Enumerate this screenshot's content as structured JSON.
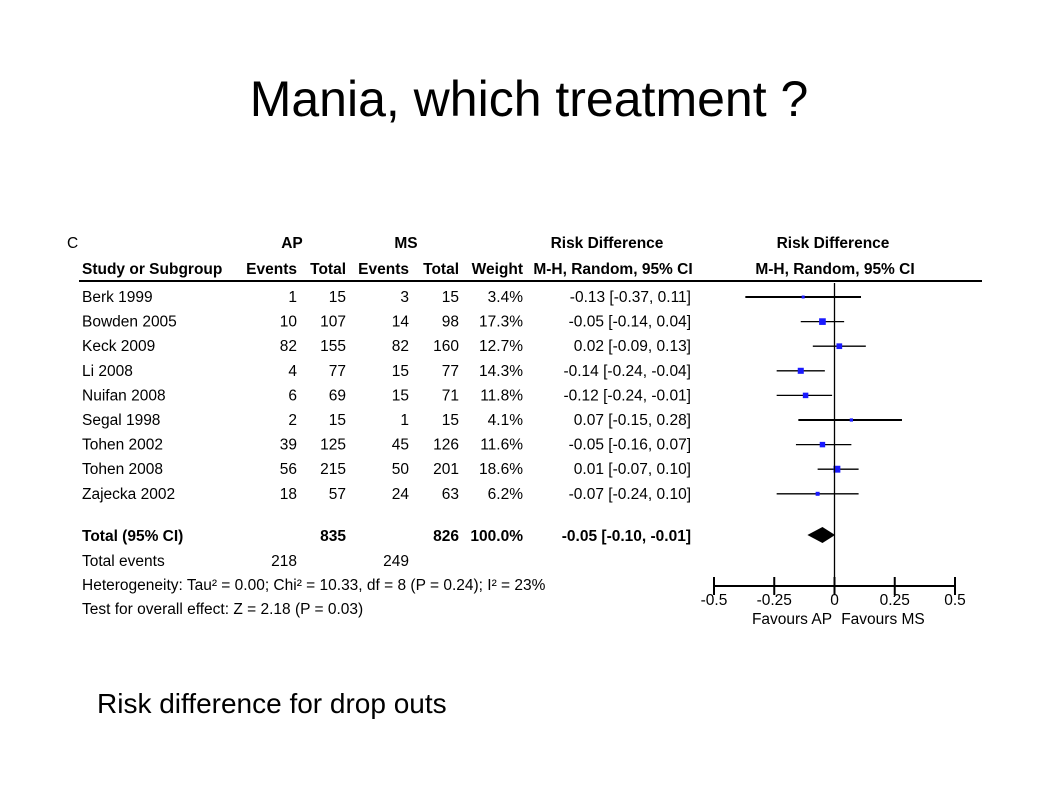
{
  "slide": {
    "title": "Mania, which treatment ?",
    "caption": "Risk difference for drop outs"
  },
  "chart_data": {
    "type": "forest",
    "panel_label": "C",
    "group_headers": {
      "ap": "AP",
      "ms": "MS"
    },
    "column_headers": {
      "study": "Study or Subgroup",
      "ap_events": "Events",
      "ap_total": "Total",
      "ms_events": "Events",
      "ms_total": "Total",
      "weight": "Weight",
      "rd_title": "Risk Difference",
      "rd_method": "M-H, Random, 95% CI",
      "plot_title": "Risk Difference",
      "plot_method": "M-H, Random, 95% CI"
    },
    "studies": [
      {
        "name": "Berk 1999",
        "ap_events": "1",
        "ap_total": "15",
        "ms_events": "3",
        "ms_total": "15",
        "weight": "3.4%",
        "ci_text": "-0.13 [-0.37, 0.11]",
        "rd": -0.13,
        "lo": -0.37,
        "hi": 0.11
      },
      {
        "name": "Bowden 2005",
        "ap_events": "10",
        "ap_total": "107",
        "ms_events": "14",
        "ms_total": "98",
        "weight": "17.3%",
        "ci_text": "-0.05 [-0.14, 0.04]",
        "rd": -0.05,
        "lo": -0.14,
        "hi": 0.04
      },
      {
        "name": "Keck 2009",
        "ap_events": "82",
        "ap_total": "155",
        "ms_events": "82",
        "ms_total": "160",
        "weight": "12.7%",
        "ci_text": "0.02 [-0.09, 0.13]",
        "rd": 0.02,
        "lo": -0.09,
        "hi": 0.13
      },
      {
        "name": "Li 2008",
        "ap_events": "4",
        "ap_total": "77",
        "ms_events": "15",
        "ms_total": "77",
        "weight": "14.3%",
        "ci_text": "-0.14 [-0.24, -0.04]",
        "rd": -0.14,
        "lo": -0.24,
        "hi": -0.04
      },
      {
        "name": "Nuifan 2008",
        "ap_events": "6",
        "ap_total": "69",
        "ms_events": "15",
        "ms_total": "71",
        "weight": "11.8%",
        "ci_text": "-0.12 [-0.24, -0.01]",
        "rd": -0.12,
        "lo": -0.24,
        "hi": -0.01
      },
      {
        "name": "Segal 1998",
        "ap_events": "2",
        "ap_total": "15",
        "ms_events": "1",
        "ms_total": "15",
        "weight": "4.1%",
        "ci_text": "0.07 [-0.15, 0.28]",
        "rd": 0.07,
        "lo": -0.15,
        "hi": 0.28
      },
      {
        "name": "Tohen 2002",
        "ap_events": "39",
        "ap_total": "125",
        "ms_events": "45",
        "ms_total": "126",
        "weight": "11.6%",
        "ci_text": "-0.05 [-0.16, 0.07]",
        "rd": -0.05,
        "lo": -0.16,
        "hi": 0.07
      },
      {
        "name": "Tohen 2008",
        "ap_events": "56",
        "ap_total": "215",
        "ms_events": "50",
        "ms_total": "201",
        "weight": "18.6%",
        "ci_text": "0.01 [-0.07, 0.10]",
        "rd": 0.01,
        "lo": -0.07,
        "hi": 0.1
      },
      {
        "name": "Zajecka 2002",
        "ap_events": "18",
        "ap_total": "57",
        "ms_events": "24",
        "ms_total": "63",
        "weight": "6.2%",
        "ci_text": "-0.07 [-0.24, 0.10]",
        "rd": -0.07,
        "lo": -0.24,
        "hi": 0.1
      }
    ],
    "total": {
      "name": "Total (95% CI)",
      "ap_total": "835",
      "ms_total": "826",
      "weight": "100.0%",
      "ci_text": "-0.05 [-0.10, -0.01]",
      "rd": -0.05,
      "lo": -0.1,
      "hi": -0.01
    },
    "total_events": {
      "label": "Total events",
      "ap": "218",
      "ms": "249"
    },
    "heterogeneity": "Heterogeneity: Tau² = 0.00; Chi² = 10.33, df = 8 (P = 0.24); I² = 23%",
    "overall_effect": "Test for overall effect: Z = 2.18 (P = 0.03)",
    "axis": {
      "xlim": [
        -0.5,
        0.5
      ],
      "ticks": [
        -0.5,
        -0.25,
        0,
        0.25,
        0.5
      ],
      "tick_labels": [
        "-0.5",
        "-0.25",
        "0",
        "0.25",
        "0.5"
      ],
      "favours_left": "Favours AP",
      "favours_right": "Favours MS"
    },
    "colors": {
      "study_marker": "#1a1aff",
      "total_marker": "#000000"
    }
  }
}
